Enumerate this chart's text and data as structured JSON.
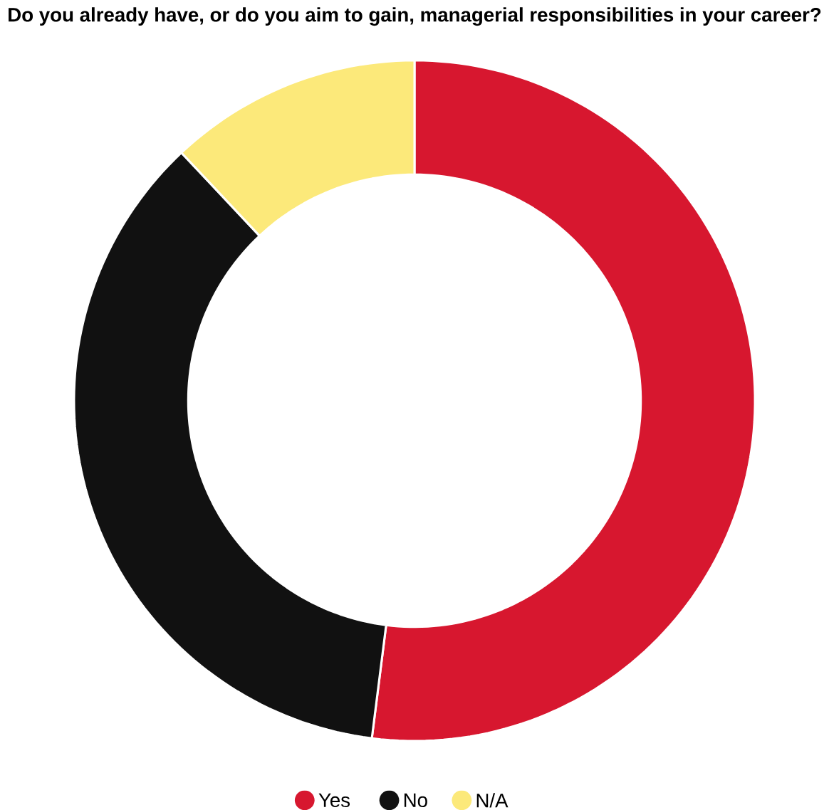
{
  "chart_data": {
    "type": "donut",
    "title": "Do you already have, or do you aim to gain, managerial responsibilities in your career?",
    "categories": [
      "Yes",
      "No",
      "N/A"
    ],
    "values": [
      52,
      36,
      12
    ],
    "colors": [
      "#d7172f",
      "#111111",
      "#fce97a"
    ],
    "legend": "bottom"
  }
}
